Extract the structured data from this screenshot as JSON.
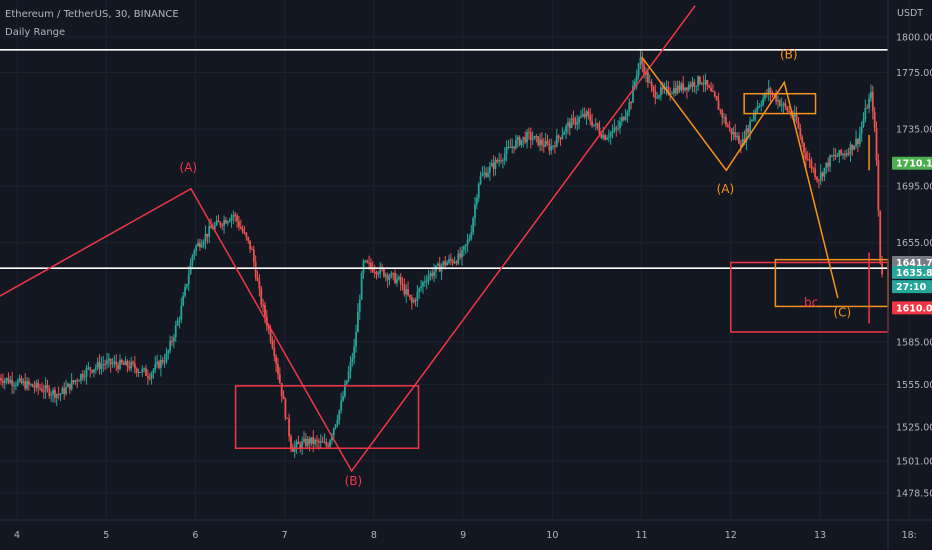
{
  "header": {
    "title": "Ethereum / TetherUS, 30, BINANCE",
    "indicator": "Daily Range"
  },
  "chart_data": {
    "type": "candlestick",
    "y_unit": "USDT",
    "ylim": [
      1470,
      1822
    ],
    "xlim": [
      3.8,
      14.05
    ],
    "y_ticks": [
      "1800.00",
      "1775.00",
      "1735.00",
      "1695.00",
      "1655.00",
      "1585.00",
      "1555.00",
      "1525.00",
      "1501.00",
      "1478.50"
    ],
    "x_ticks": [
      {
        "x": 4,
        "label": "4"
      },
      {
        "x": 5,
        "label": "5"
      },
      {
        "x": 6,
        "label": "6"
      },
      {
        "x": 7,
        "label": "7"
      },
      {
        "x": 8,
        "label": "8"
      },
      {
        "x": 9,
        "label": "9"
      },
      {
        "x": 10,
        "label": "10"
      },
      {
        "x": 11,
        "label": "11"
      },
      {
        "x": 12,
        "label": "12"
      },
      {
        "x": 13,
        "label": "13"
      },
      {
        "x": 14,
        "label": "18:"
      }
    ],
    "price_path": [
      [
        3.8,
        1560
      ],
      [
        4.3,
        1552
      ],
      [
        4.5,
        1548
      ],
      [
        4.8,
        1565
      ],
      [
        5.0,
        1570
      ],
      [
        5.3,
        1568
      ],
      [
        5.5,
        1562
      ],
      [
        5.7,
        1575
      ],
      [
        5.85,
        1605
      ],
      [
        6.0,
        1650
      ],
      [
        6.2,
        1665
      ],
      [
        6.45,
        1675
      ],
      [
        6.65,
        1650
      ],
      [
        6.75,
        1615
      ],
      [
        6.9,
        1580
      ],
      [
        7.0,
        1545
      ],
      [
        7.1,
        1510
      ],
      [
        7.3,
        1515
      ],
      [
        7.5,
        1512
      ],
      [
        7.65,
        1540
      ],
      [
        7.8,
        1580
      ],
      [
        7.9,
        1640
      ],
      [
        8.1,
        1635
      ],
      [
        8.3,
        1628
      ],
      [
        8.45,
        1612
      ],
      [
        8.6,
        1630
      ],
      [
        8.8,
        1640
      ],
      [
        9.0,
        1645
      ],
      [
        9.1,
        1660
      ],
      [
        9.2,
        1700
      ],
      [
        9.4,
        1712
      ],
      [
        9.6,
        1725
      ],
      [
        9.75,
        1730
      ],
      [
        10.0,
        1722
      ],
      [
        10.2,
        1738
      ],
      [
        10.4,
        1745
      ],
      [
        10.6,
        1730
      ],
      [
        10.75,
        1735
      ],
      [
        10.9,
        1755
      ],
      [
        11.0,
        1785
      ],
      [
        11.15,
        1760
      ],
      [
        11.3,
        1762
      ],
      [
        11.5,
        1765
      ],
      [
        11.7,
        1770
      ],
      [
        11.85,
        1755
      ],
      [
        12.0,
        1735
      ],
      [
        12.15,
        1725
      ],
      [
        12.3,
        1750
      ],
      [
        12.45,
        1762
      ],
      [
        12.6,
        1752
      ],
      [
        12.75,
        1742
      ],
      [
        12.85,
        1718
      ],
      [
        13.0,
        1700
      ],
      [
        13.15,
        1715
      ],
      [
        13.3,
        1718
      ],
      [
        13.45,
        1728
      ],
      [
        13.55,
        1752
      ],
      [
        13.6,
        1760
      ],
      [
        13.65,
        1720
      ],
      [
        13.7,
        1635
      ]
    ],
    "horizontal_levels": [
      {
        "price": 1791,
        "color": "#ffffff"
      },
      {
        "price": 1637,
        "color": "#ffffff"
      }
    ],
    "price_tags": [
      {
        "text": "1710.16",
        "price": 1711,
        "bg": "#4caf50",
        "fg": "#ffffff"
      },
      {
        "text": "1641.77",
        "price": 1641,
        "bg": "#787b86",
        "fg": "#ffffff"
      },
      {
        "text": "1635.89",
        "price": 1634,
        "bg": "#26a69a",
        "fg": "#ffffff"
      },
      {
        "text": "27:10",
        "price": 1624,
        "bg": "#26a69a",
        "fg": "#ffffff"
      },
      {
        "text": "1610.08",
        "price": 1609,
        "bg": "#f23645",
        "fg": "#ffffff"
      }
    ],
    "annotations": {
      "lines": [
        {
          "color": "#f23645",
          "points": [
            [
              3.8,
              1617
            ],
            [
              5.95,
              1693
            ],
            [
              7.75,
              1494
            ],
            [
              11.6,
              1822
            ]
          ]
        },
        {
          "color": "#f7931a",
          "points": [
            [
              11.0,
              1786
            ],
            [
              11.95,
              1706
            ],
            [
              12.6,
              1768
            ],
            [
              13.2,
              1616
            ]
          ]
        },
        {
          "color": "#f23645",
          "points": [
            [
              13.55,
              1648
            ],
            [
              13.55,
              1598
            ]
          ]
        },
        {
          "color": "#f7931a",
          "points": [
            [
              13.55,
              1731
            ],
            [
              13.55,
              1706
            ]
          ]
        }
      ],
      "boxes": [
        {
          "color": "#f23645",
          "x1": 6.45,
          "y1": 1554,
          "x2": 8.5,
          "y2": 1510
        },
        {
          "color": "#f23645",
          "x1": 12.0,
          "y1": 1641,
          "x2": 14.05,
          "y2": 1592
        },
        {
          "color": "#f7931a",
          "x1": 12.15,
          "y1": 1760,
          "x2": 12.95,
          "y2": 1746
        },
        {
          "color": "#f7931a",
          "x1": 12.5,
          "y1": 1643,
          "x2": 14.05,
          "y2": 1610
        }
      ],
      "labels": [
        {
          "text": "(A)",
          "x": 5.92,
          "y": 1705,
          "color": "#f23645"
        },
        {
          "text": "(B)",
          "x": 7.77,
          "y": 1484,
          "color": "#f23645"
        },
        {
          "text": "(B)",
          "x": 12.65,
          "y": 1785,
          "color": "#f7931a"
        },
        {
          "text": "(A)",
          "x": 11.94,
          "y": 1690,
          "color": "#f7931a"
        },
        {
          "text": "(C)",
          "x": 13.25,
          "y": 1603,
          "color": "#f7931a"
        },
        {
          "text": "bc",
          "x": 12.9,
          "y": 1610,
          "color": "#f23645"
        }
      ]
    },
    "colors": {
      "background": "#131722",
      "up": "#26a69a",
      "down": "#ef5350",
      "grid": "#1e222d",
      "axis_text": "#b2b5be"
    }
  }
}
